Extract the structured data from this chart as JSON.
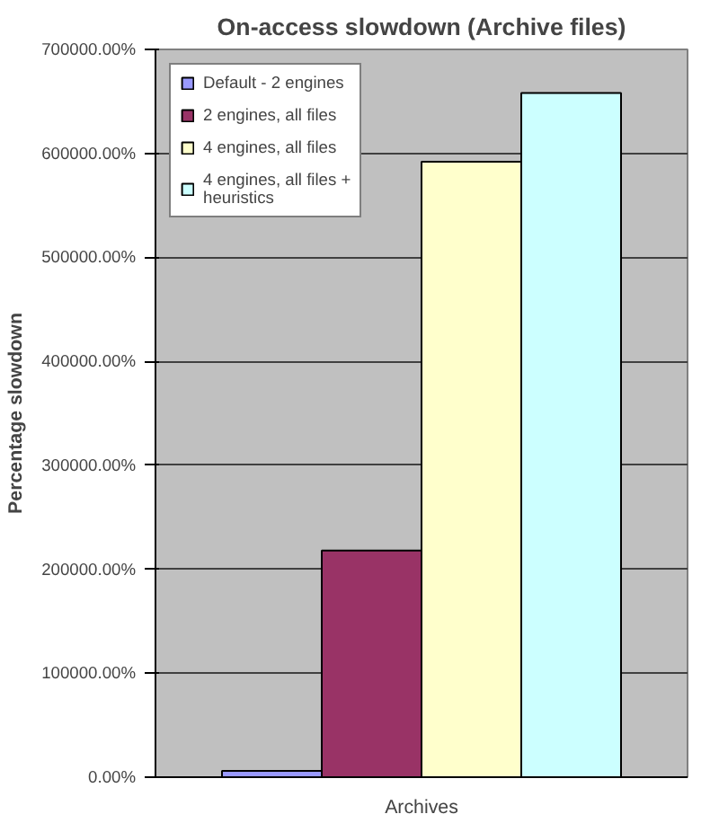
{
  "chart_data": {
    "type": "bar",
    "title": "On-access slowdown (Archive files)",
    "ylabel": "Percentage slowdown",
    "categories": [
      "Archives"
    ],
    "series": [
      {
        "name": "Default - 2 engines",
        "color": "#9999ff",
        "values": [
          6000
        ]
      },
      {
        "name": "2 engines, all files",
        "color": "#993366",
        "values": [
          218000
        ]
      },
      {
        "name": "4 engines, all files",
        "color": "#ffffcc",
        "values": [
          592000
        ]
      },
      {
        "name": "4 engines, all files + heuristics",
        "color": "#ccffff",
        "values": [
          658000
        ]
      }
    ],
    "ylim": [
      0,
      700000
    ],
    "yticks": [
      {
        "value": 0,
        "label": "0.00%"
      },
      {
        "value": 100000,
        "label": "100000.00%"
      },
      {
        "value": 200000,
        "label": "200000.00%"
      },
      {
        "value": 300000,
        "label": "300000.00%"
      },
      {
        "value": 400000,
        "label": "400000.00%"
      },
      {
        "value": 500000,
        "label": "500000.00%"
      },
      {
        "value": 600000,
        "label": "600000.00%"
      },
      {
        "value": 700000,
        "label": "700000.00%"
      }
    ],
    "grid": "y",
    "legend": "top left"
  }
}
